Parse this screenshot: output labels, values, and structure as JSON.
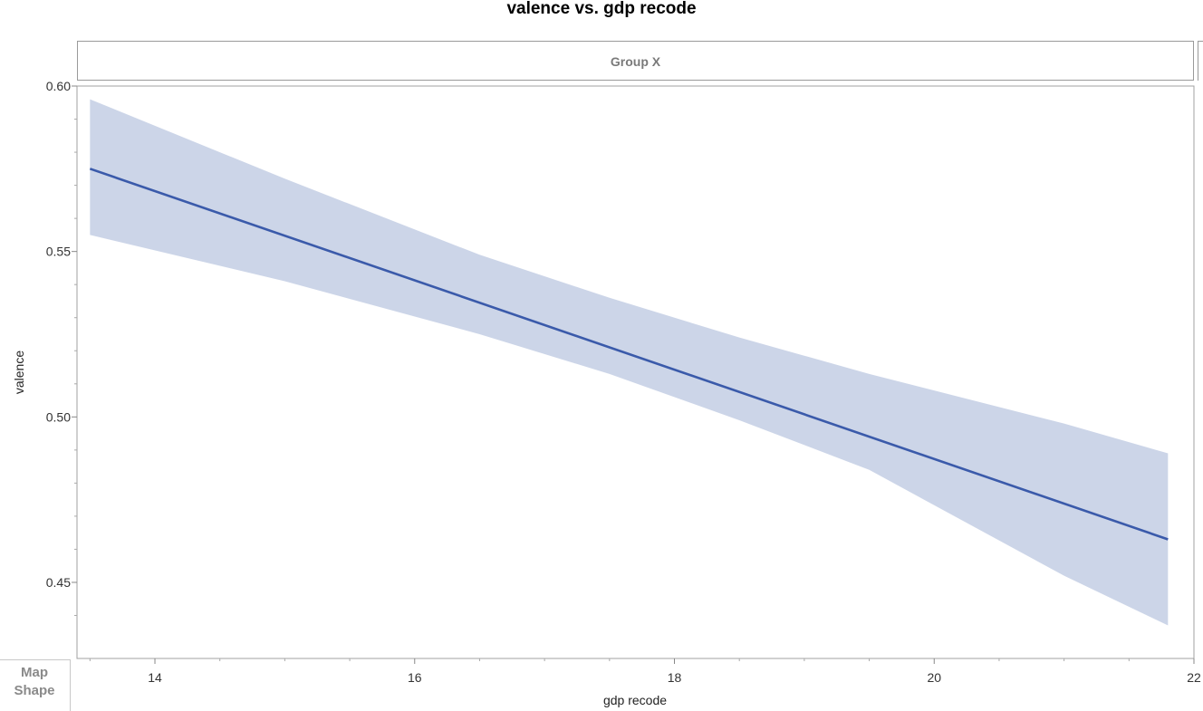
{
  "chart_data": {
    "type": "line",
    "title": "valence vs. gdp recode",
    "group_label": "Group X",
    "xlabel": "gdp recode",
    "ylabel": "valence",
    "xlim": [
      13.4,
      22
    ],
    "ylim": [
      0.427,
      0.6
    ],
    "x_ticks": [
      14,
      16,
      18,
      20,
      22
    ],
    "x_tick_labels": [
      "14",
      "16",
      "18",
      "20",
      "22"
    ],
    "y_ticks": [
      0.45,
      0.5,
      0.55,
      0.6
    ],
    "y_tick_labels": [
      "0.45",
      "0.50",
      "0.55",
      "0.60"
    ],
    "series": [
      {
        "fit": {
          "x": [
            13.5,
            21.8
          ],
          "y": [
            0.575,
            0.463
          ]
        },
        "band": {
          "x": [
            13.5,
            15,
            16.5,
            17.5,
            18.5,
            19.5,
            21,
            21.8
          ],
          "upper": [
            0.596,
            0.572,
            0.549,
            0.536,
            0.524,
            0.513,
            0.498,
            0.489
          ],
          "lower": [
            0.555,
            0.541,
            0.525,
            0.513,
            0.499,
            0.484,
            0.452,
            0.437
          ]
        },
        "line_color": "#3a5aaa",
        "band_color": "#ccd5e8"
      }
    ]
  },
  "footer": {
    "map_label": "Map",
    "shape_label": "Shape"
  }
}
